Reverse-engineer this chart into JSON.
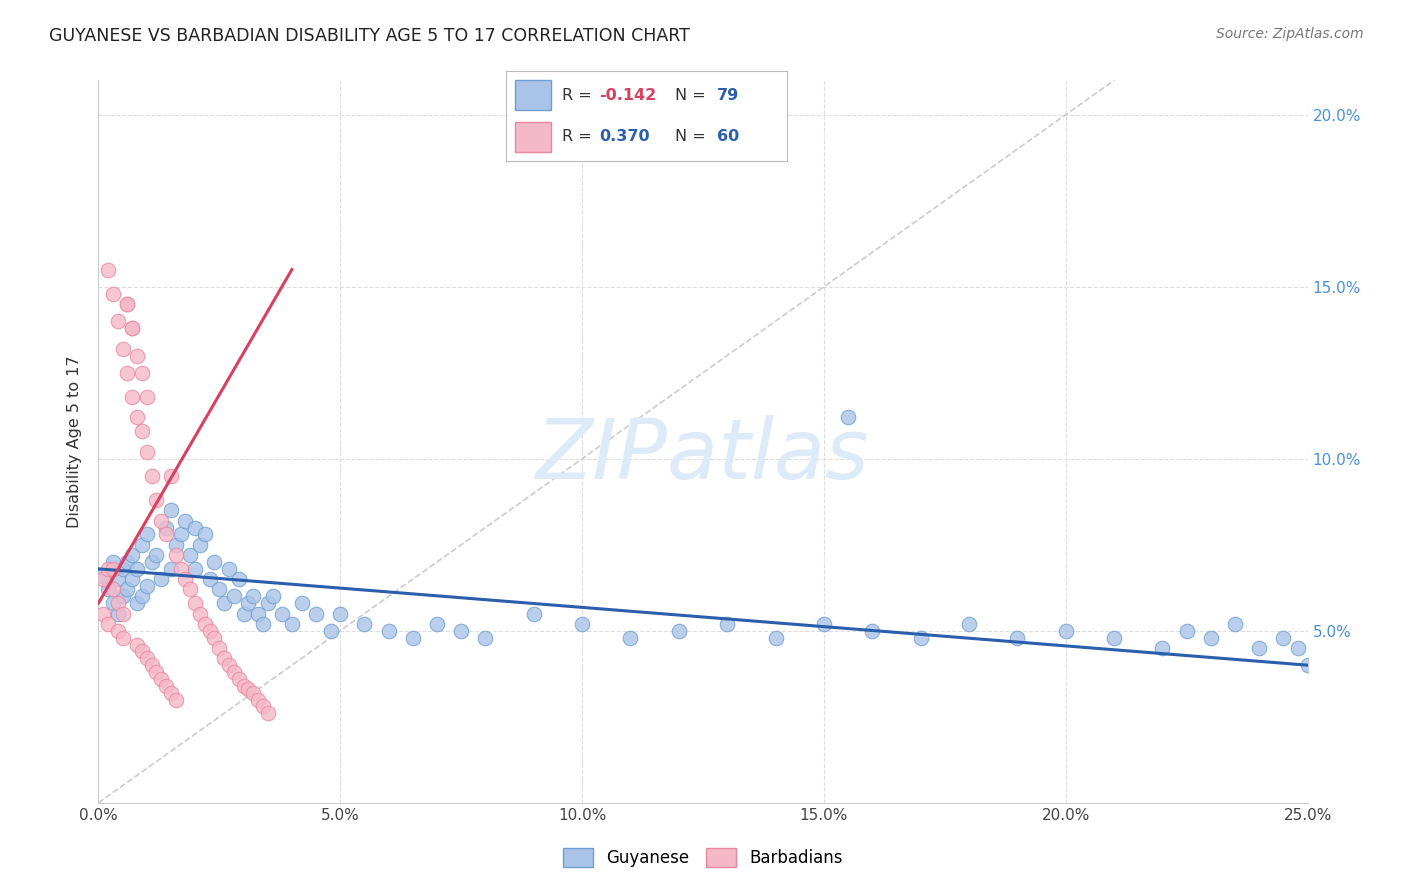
{
  "title": "GUYANESE VS BARBADIAN DISABILITY AGE 5 TO 17 CORRELATION CHART",
  "source": "Source: ZipAtlas.com",
  "ylabel": "Disability Age 5 to 17",
  "xlim": [
    0.0,
    0.25
  ],
  "ylim": [
    0.0,
    0.21
  ],
  "xticks": [
    0.0,
    0.05,
    0.1,
    0.15,
    0.2,
    0.25
  ],
  "yticks_right": [
    0.05,
    0.1,
    0.15,
    0.2
  ],
  "xtick_labels": [
    "0.0%",
    "5.0%",
    "10.0%",
    "15.0%",
    "20.0%",
    "25.0%"
  ],
  "ytick_labels_right": [
    "5.0%",
    "10.0%",
    "15.0%",
    "20.0%"
  ],
  "blue_scatter_color": "#aac4e8",
  "blue_scatter_edge": "#6fa0d0",
  "pink_scatter_color": "#f5b8c8",
  "pink_scatter_edge": "#e888a0",
  "blue_line_color": "#2b5fad",
  "pink_line_color": "#d94060",
  "diagonal_color": "#cccccc",
  "watermark_color": "#ddeaf8",
  "background_color": "#ffffff",
  "grid_color": "#dddddd",
  "blue_scatter_x": [
    0.001,
    0.002,
    0.003,
    0.003,
    0.004,
    0.004,
    0.005,
    0.005,
    0.006,
    0.006,
    0.007,
    0.007,
    0.008,
    0.008,
    0.009,
    0.009,
    0.01,
    0.01,
    0.011,
    0.012,
    0.013,
    0.014,
    0.015,
    0.015,
    0.016,
    0.017,
    0.018,
    0.019,
    0.02,
    0.02,
    0.021,
    0.022,
    0.023,
    0.024,
    0.025,
    0.026,
    0.027,
    0.028,
    0.029,
    0.03,
    0.031,
    0.032,
    0.033,
    0.034,
    0.035,
    0.036,
    0.038,
    0.04,
    0.042,
    0.045,
    0.048,
    0.05,
    0.055,
    0.06,
    0.065,
    0.07,
    0.075,
    0.08,
    0.09,
    0.1,
    0.11,
    0.12,
    0.13,
    0.14,
    0.15,
    0.16,
    0.17,
    0.18,
    0.19,
    0.2,
    0.21,
    0.22,
    0.225,
    0.23,
    0.235,
    0.24,
    0.245,
    0.248,
    0.25
  ],
  "blue_scatter_y": [
    0.066,
    0.062,
    0.058,
    0.07,
    0.055,
    0.065,
    0.06,
    0.068,
    0.062,
    0.07,
    0.065,
    0.072,
    0.058,
    0.068,
    0.06,
    0.075,
    0.063,
    0.078,
    0.07,
    0.072,
    0.065,
    0.08,
    0.068,
    0.085,
    0.075,
    0.078,
    0.082,
    0.072,
    0.068,
    0.08,
    0.075,
    0.078,
    0.065,
    0.07,
    0.062,
    0.058,
    0.068,
    0.06,
    0.065,
    0.055,
    0.058,
    0.06,
    0.055,
    0.052,
    0.058,
    0.06,
    0.055,
    0.052,
    0.058,
    0.055,
    0.05,
    0.055,
    0.052,
    0.05,
    0.048,
    0.052,
    0.05,
    0.048,
    0.055,
    0.052,
    0.048,
    0.05,
    0.052,
    0.048,
    0.052,
    0.05,
    0.048,
    0.052,
    0.048,
    0.05,
    0.048,
    0.045,
    0.05,
    0.048,
    0.052,
    0.045,
    0.048,
    0.045,
    0.04
  ],
  "blue_scatter_y_special": [
    0.112
  ],
  "blue_scatter_x_special": [
    0.155
  ],
  "pink_scatter_x": [
    0.001,
    0.002,
    0.002,
    0.003,
    0.003,
    0.004,
    0.004,
    0.005,
    0.005,
    0.006,
    0.006,
    0.007,
    0.007,
    0.008,
    0.008,
    0.009,
    0.009,
    0.01,
    0.01,
    0.011,
    0.012,
    0.013,
    0.014,
    0.015,
    0.016,
    0.017,
    0.018,
    0.019,
    0.02,
    0.021,
    0.022,
    0.023,
    0.024,
    0.025,
    0.026,
    0.027,
    0.028,
    0.029,
    0.03,
    0.031,
    0.032,
    0.033,
    0.034,
    0.035,
    0.001,
    0.002,
    0.003,
    0.004,
    0.005,
    0.006,
    0.007,
    0.008,
    0.009,
    0.01,
    0.011,
    0.012,
    0.013,
    0.014,
    0.015,
    0.016
  ],
  "pink_scatter_y": [
    0.065,
    0.068,
    0.155,
    0.062,
    0.148,
    0.058,
    0.14,
    0.055,
    0.132,
    0.125,
    0.145,
    0.118,
    0.138,
    0.112,
    0.13,
    0.108,
    0.125,
    0.102,
    0.118,
    0.095,
    0.088,
    0.082,
    0.078,
    0.095,
    0.072,
    0.068,
    0.065,
    0.062,
    0.058,
    0.055,
    0.052,
    0.05,
    0.048,
    0.045,
    0.042,
    0.04,
    0.038,
    0.036,
    0.034,
    0.033,
    0.032,
    0.03,
    0.028,
    0.026,
    0.055,
    0.052,
    0.068,
    0.05,
    0.048,
    0.145,
    0.138,
    0.046,
    0.044,
    0.042,
    0.04,
    0.038,
    0.036,
    0.034,
    0.032,
    0.03
  ],
  "pink_line_x": [
    0.0,
    0.04
  ],
  "pink_line_y_start": 0.058,
  "pink_line_y_end": 0.155,
  "blue_line_x": [
    0.0,
    0.25
  ],
  "blue_line_y_start": 0.068,
  "blue_line_y_end": 0.04
}
